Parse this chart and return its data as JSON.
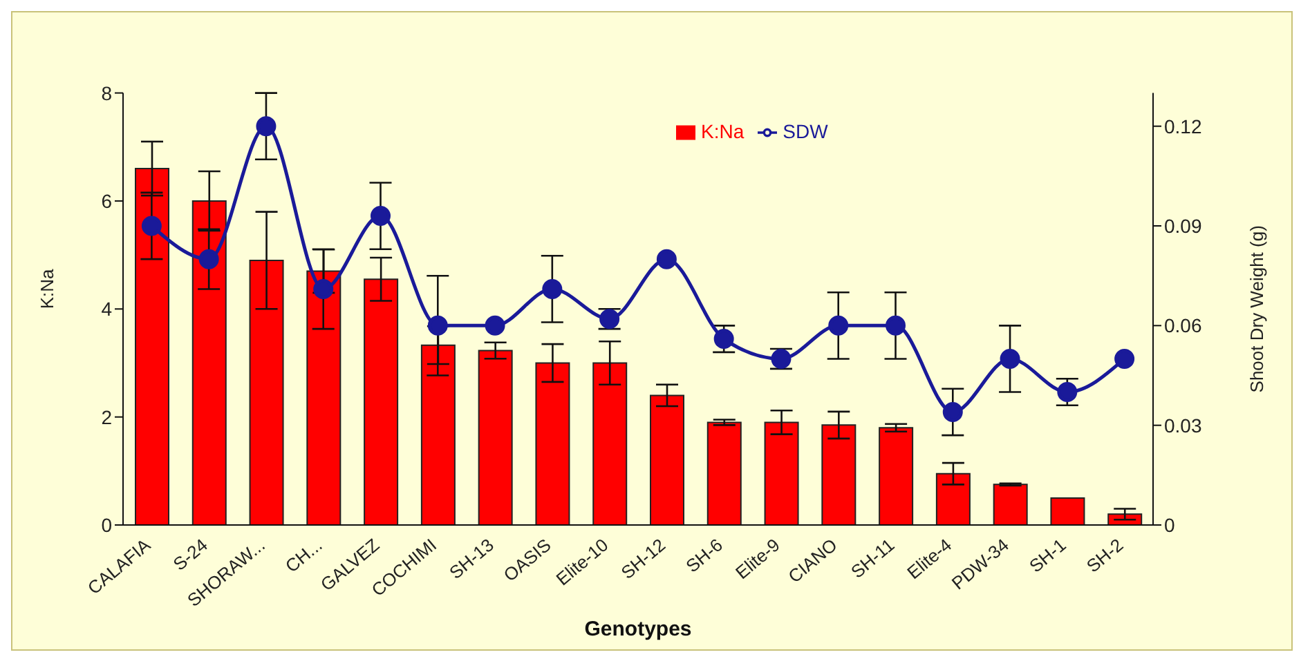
{
  "chart_data": {
    "type": "bar",
    "xlabel": "Genotypes",
    "ylabel": "K:Na",
    "y2label": "Shoot Dry Weight (g)",
    "categories": [
      "CALAFIA",
      "S-24",
      "SHORAW...",
      "CH...",
      "GALVEZ",
      "COCHIMI",
      "SH-13",
      "OASIS",
      "Elite-10",
      "SH-12",
      "SH-6",
      "Elite-9",
      "CIANO",
      "SH-11",
      "Elite-4",
      "PDW-34",
      "SH-1",
      "SH-2"
    ],
    "series": [
      {
        "name": "K:Na",
        "color": "#ff0000",
        "values": [
          6.6,
          6.0,
          4.9,
          4.7,
          4.55,
          3.33,
          3.23,
          3.0,
          3.0,
          2.4,
          1.9,
          1.9,
          1.85,
          1.8,
          0.95,
          0.75,
          0.5,
          0.2
        ],
        "errors": [
          0.5,
          0.55,
          0.9,
          0.4,
          0.4,
          0.35,
          0.15,
          0.35,
          0.4,
          0.2,
          0.05,
          0.22,
          0.25,
          0.07,
          0.2,
          0.02,
          null,
          0.1
        ]
      },
      {
        "name": "SDW",
        "type": "line",
        "axis": "y2",
        "color": "#1a1a99",
        "values": [
          0.09,
          0.08,
          0.12,
          0.071,
          0.093,
          0.06,
          0.06,
          0.071,
          0.062,
          0.08,
          0.056,
          0.05,
          0.06,
          0.06,
          0.034,
          0.05,
          0.04,
          0.05
        ],
        "errors": [
          0.01,
          0.009,
          0.01,
          0.012,
          0.01,
          0.015,
          null,
          0.01,
          0.003,
          null,
          0.004,
          0.003,
          0.01,
          0.01,
          0.007,
          0.01,
          0.004,
          null
        ]
      }
    ],
    "ylim": [
      0,
      8
    ],
    "yticks": [
      0,
      2,
      4,
      6,
      8
    ],
    "y2lim": [
      0,
      0.13
    ],
    "y2ticks": [
      0,
      0.03,
      0.06,
      0.09,
      0.12
    ],
    "grid": false,
    "legend": "top",
    "marker": "circle"
  }
}
